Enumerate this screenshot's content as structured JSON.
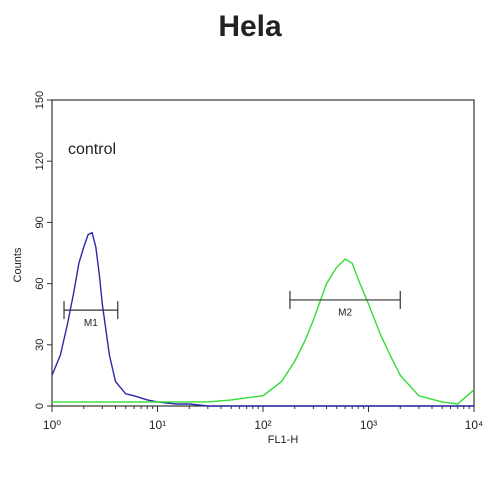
{
  "chart_data": {
    "type": "line",
    "title": "Hela",
    "x_label": "FL1-H",
    "y_label": "Counts",
    "x": [
      1,
      1.2,
      1.4,
      1.6,
      1.8,
      2,
      2.2,
      2.4,
      2.6,
      2.8,
      3,
      3.5,
      4,
      5,
      6,
      8,
      10,
      15,
      20,
      30,
      50,
      70,
      100,
      150,
      200,
      250,
      300,
      400,
      500,
      600,
      700,
      800,
      1000,
      1300,
      1600,
      2000,
      3000,
      5000,
      7000,
      10000
    ],
    "series": [
      {
        "name": "control",
        "color": "#2a2aa8",
        "values": [
          15,
          25,
          40,
          55,
          70,
          78,
          84,
          85,
          78,
          65,
          50,
          25,
          12,
          6,
          5,
          3,
          2,
          1,
          1,
          0,
          0,
          0,
          0,
          0,
          0,
          0,
          0,
          0,
          0,
          0,
          0,
          0,
          0,
          0,
          0,
          0,
          0,
          0,
          0,
          0
        ]
      },
      {
        "color": "#33dd33",
        "values": [
          2,
          2,
          2,
          2,
          2,
          2,
          2,
          2,
          2,
          2,
          2,
          2,
          2,
          2,
          2,
          2,
          2,
          2,
          2,
          2,
          3,
          4,
          5,
          12,
          22,
          32,
          42,
          60,
          68,
          72,
          70,
          62,
          50,
          35,
          25,
          15,
          5,
          2,
          1,
          8
        ]
      }
    ],
    "xscale": "log",
    "xlim": [
      1,
      10000
    ],
    "xticks": [
      {
        "value": 1,
        "label": "10⁰"
      },
      {
        "value": 10,
        "label": "10¹"
      },
      {
        "value": 100,
        "label": "10²"
      },
      {
        "value": 1000,
        "label": "10³"
      },
      {
        "value": 10000,
        "label": "10⁴"
      }
    ],
    "ylim": [
      0,
      150
    ],
    "yticks": [
      0,
      30,
      60,
      90,
      120,
      150
    ],
    "markers": [
      {
        "label": "M1",
        "x": [
          1.3,
          4.2
        ],
        "y": 47
      },
      {
        "label": "M2",
        "x": [
          180,
          2000
        ],
        "y": 52
      }
    ]
  }
}
